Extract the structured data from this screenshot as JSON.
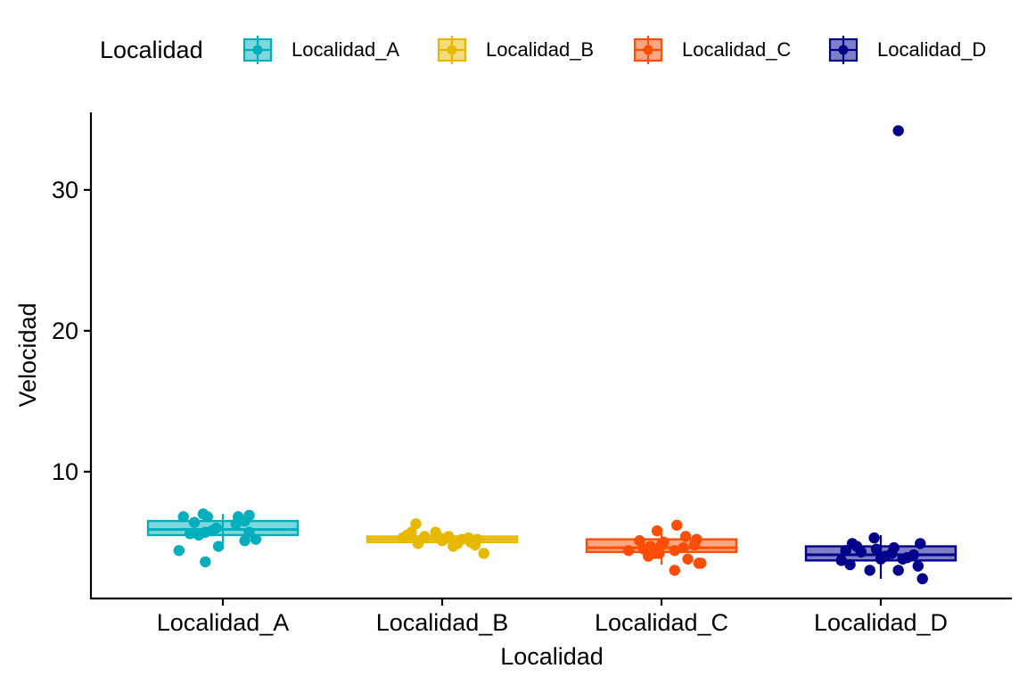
{
  "chart_data": {
    "type": "box",
    "legend": {
      "title": "Localidad",
      "position": "top"
    },
    "xlabel": "Localidad",
    "ylabel": "Velocidad",
    "ylim": [
      1.0,
      35.5
    ],
    "yticks": [
      10,
      20,
      30
    ],
    "categories": [
      "Localidad_A",
      "Localidad_B",
      "Localidad_C",
      "Localidad_D"
    ],
    "colors": {
      "Localidad_A": "#00AFBB",
      "Localidad_B": "#E7B800",
      "Localidad_C": "#FC4E07",
      "Localidad_D": "#00008B"
    },
    "boxes": [
      {
        "category": "Localidad_A",
        "whisker_low": 4.9,
        "q1": 5.5,
        "median": 5.9,
        "q3": 6.5,
        "whisker_high": 7.0
      },
      {
        "category": "Localidad_B",
        "whisker_low": 4.9,
        "q1": 5.0,
        "median": 5.2,
        "q3": 5.4,
        "whisker_high": 5.5
      },
      {
        "category": "Localidad_C",
        "whisker_low": 3.4,
        "q1": 4.3,
        "median": 4.6,
        "q3": 5.2,
        "whisker_high": 5.6
      },
      {
        "category": "Localidad_D",
        "whisker_low": 2.4,
        "q1": 3.7,
        "median": 4.1,
        "q3": 4.7,
        "whisker_high": 5.5
      }
    ],
    "points": {
      "Localidad_A": [
        {
          "x": -0.2,
          "y": 4.4
        },
        {
          "x": -0.18,
          "y": 6.8
        },
        {
          "x": -0.15,
          "y": 5.6
        },
        {
          "x": -0.13,
          "y": 6.4
        },
        {
          "x": -0.11,
          "y": 5.5
        },
        {
          "x": -0.09,
          "y": 7.0
        },
        {
          "x": -0.08,
          "y": 5.7
        },
        {
          "x": -0.05,
          "y": 5.8
        },
        {
          "x": -0.08,
          "y": 3.6
        },
        {
          "x": -0.07,
          "y": 6.8
        },
        {
          "x": -0.03,
          "y": 6.0
        },
        {
          "x": -0.02,
          "y": 4.7
        },
        {
          "x": 0.06,
          "y": 6.3
        },
        {
          "x": 0.07,
          "y": 6.8
        },
        {
          "x": 0.1,
          "y": 6.5
        },
        {
          "x": 0.1,
          "y": 5.1
        },
        {
          "x": 0.12,
          "y": 6.9
        },
        {
          "x": 0.12,
          "y": 5.7
        },
        {
          "x": 0.15,
          "y": 5.2
        }
      ],
      "Localidad_B": [
        {
          "x": -0.18,
          "y": 5.3
        },
        {
          "x": -0.16,
          "y": 5.5
        },
        {
          "x": -0.14,
          "y": 5.7
        },
        {
          "x": -0.12,
          "y": 6.3
        },
        {
          "x": -0.11,
          "y": 4.9
        },
        {
          "x": -0.08,
          "y": 5.4
        },
        {
          "x": -0.03,
          "y": 5.7
        },
        {
          "x": -0.01,
          "y": 5.3
        },
        {
          "x": 0.0,
          "y": 5.1
        },
        {
          "x": 0.03,
          "y": 5.4
        },
        {
          "x": 0.05,
          "y": 4.7
        },
        {
          "x": 0.07,
          "y": 4.9
        },
        {
          "x": 0.09,
          "y": 5.2
        },
        {
          "x": 0.12,
          "y": 5.3
        },
        {
          "x": 0.13,
          "y": 5.0
        },
        {
          "x": 0.15,
          "y": 4.8
        },
        {
          "x": 0.16,
          "y": 5.2
        },
        {
          "x": 0.19,
          "y": 4.2
        }
      ],
      "Localidad_C": [
        {
          "x": -0.15,
          "y": 4.4
        },
        {
          "x": -0.1,
          "y": 5.1
        },
        {
          "x": -0.08,
          "y": 4.5
        },
        {
          "x": -0.06,
          "y": 4.0
        },
        {
          "x": -0.05,
          "y": 4.7
        },
        {
          "x": -0.03,
          "y": 4.2
        },
        {
          "x": -0.02,
          "y": 5.8
        },
        {
          "x": -0.01,
          "y": 4.2
        },
        {
          "x": 0.0,
          "y": 4.8
        },
        {
          "x": 0.01,
          "y": 5.0
        },
        {
          "x": 0.06,
          "y": 4.4
        },
        {
          "x": 0.06,
          "y": 3.0
        },
        {
          "x": 0.07,
          "y": 6.2
        },
        {
          "x": 0.1,
          "y": 4.6
        },
        {
          "x": 0.11,
          "y": 5.4
        },
        {
          "x": 0.12,
          "y": 3.8
        },
        {
          "x": 0.15,
          "y": 4.8
        },
        {
          "x": 0.16,
          "y": 5.2
        },
        {
          "x": 0.17,
          "y": 3.5
        },
        {
          "x": 0.18,
          "y": 3.5
        }
      ],
      "Localidad_D": [
        {
          "x": -0.18,
          "y": 3.7
        },
        {
          "x": -0.16,
          "y": 4.4
        },
        {
          "x": -0.14,
          "y": 3.4
        },
        {
          "x": -0.13,
          "y": 4.9
        },
        {
          "x": -0.11,
          "y": 4.7
        },
        {
          "x": -0.09,
          "y": 4.3
        },
        {
          "x": -0.05,
          "y": 3.0
        },
        {
          "x": -0.03,
          "y": 5.3
        },
        {
          "x": -0.02,
          "y": 4.5
        },
        {
          "x": 0.0,
          "y": 3.8
        },
        {
          "x": 0.02,
          "y": 4.0
        },
        {
          "x": 0.05,
          "y": 4.2
        },
        {
          "x": 0.06,
          "y": 4.6
        },
        {
          "x": 0.08,
          "y": 3.0
        },
        {
          "x": 0.1,
          "y": 3.8
        },
        {
          "x": 0.12,
          "y": 3.9
        },
        {
          "x": 0.15,
          "y": 4.1
        },
        {
          "x": 0.17,
          "y": 3.3
        },
        {
          "x": 0.18,
          "y": 4.9
        },
        {
          "x": 0.19,
          "y": 2.4
        },
        {
          "x": 0.08,
          "y": 34.2
        }
      ]
    }
  }
}
